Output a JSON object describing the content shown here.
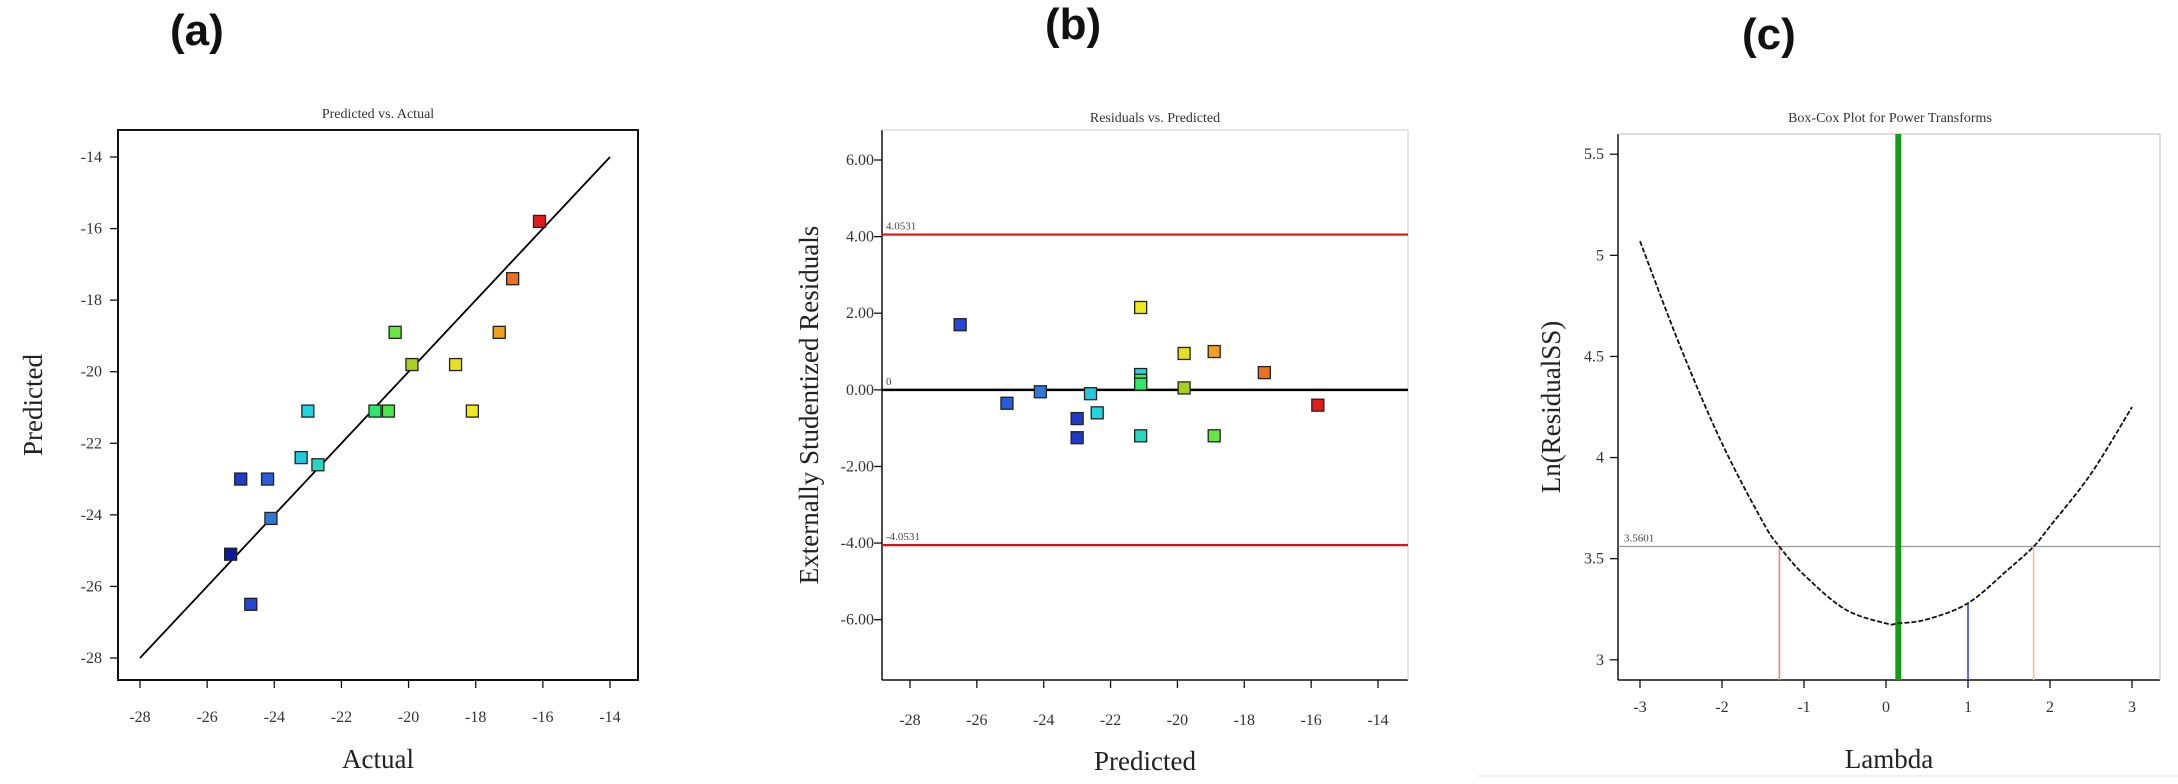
{
  "panels": {
    "a": {
      "letter": "(a)"
    },
    "b": {
      "letter": "(b)"
    },
    "c": {
      "letter": "(c)"
    }
  },
  "chart_data": [
    {
      "id": "a",
      "type": "scatter",
      "title": "Predicted vs. Actual",
      "xlabel": "Actual",
      "ylabel": "Predicted",
      "xlim": [
        -28,
        -14
      ],
      "ylim": [
        -28,
        -14
      ],
      "xticks": [
        -28,
        -26,
        -24,
        -22,
        -20,
        -18,
        -16,
        -14
      ],
      "yticks": [
        -28,
        -26,
        -24,
        -22,
        -20,
        -18,
        -16,
        -14
      ],
      "reference_line": {
        "from": [
          -28,
          -28
        ],
        "to": [
          -14,
          -14
        ],
        "color": "#000000"
      },
      "points": [
        {
          "x": -25.3,
          "y": -25.1,
          "color": "#0a1a9c"
        },
        {
          "x": -25.0,
          "y": -23.0,
          "color": "#1f3cc8"
        },
        {
          "x": -24.7,
          "y": -26.5,
          "color": "#2347d6"
        },
        {
          "x": -24.2,
          "y": -23.0,
          "color": "#2a5bd8"
        },
        {
          "x": -24.1,
          "y": -24.1,
          "color": "#2f78d8"
        },
        {
          "x": -23.2,
          "y": -22.4,
          "color": "#22c8dc"
        },
        {
          "x": -23.0,
          "y": -21.1,
          "color": "#22d4e0"
        },
        {
          "x": -22.7,
          "y": -22.6,
          "color": "#27d6c0"
        },
        {
          "x": -21.0,
          "y": -21.1,
          "color": "#2ee86a"
        },
        {
          "x": -20.6,
          "y": -21.1,
          "color": "#4ae84a"
        },
        {
          "x": -20.4,
          "y": -18.9,
          "color": "#66e840"
        },
        {
          "x": -19.9,
          "y": -19.8,
          "color": "#a8d020"
        },
        {
          "x": -18.6,
          "y": -19.8,
          "color": "#e6e020"
        },
        {
          "x": -18.1,
          "y": -21.1,
          "color": "#f2e81e"
        },
        {
          "x": -17.3,
          "y": -18.9,
          "color": "#f0a020"
        },
        {
          "x": -16.9,
          "y": -17.4,
          "color": "#f07020"
        },
        {
          "x": -16.1,
          "y": -15.8,
          "color": "#e21c1c"
        }
      ]
    },
    {
      "id": "b",
      "type": "scatter",
      "title": "Residuals vs. Predicted",
      "xlabel": "Predicted",
      "ylabel": "Externally Studentized Residuals",
      "xlim": [
        -28,
        -14
      ],
      "ylim": [
        -7,
        6
      ],
      "xticks": [
        -28,
        -26,
        -24,
        -22,
        -20,
        -18,
        -16,
        -14
      ],
      "yticks": [
        -6,
        -4,
        -2,
        0,
        2,
        4,
        6
      ],
      "ytick_labels": [
        "-6.00",
        "-4.00",
        "-2.00",
        "0.00",
        "2.00",
        "4.00",
        "6.00"
      ],
      "hlines": [
        {
          "y": 4.0531,
          "label": "4.0531",
          "color": "#e01010"
        },
        {
          "y": 0,
          "label": "0",
          "color": "#000000"
        },
        {
          "y": -4.0531,
          "label": "-4.0531",
          "color": "#e01010"
        }
      ],
      "points": [
        {
          "x": -26.5,
          "y": 1.7,
          "color": "#2347d6"
        },
        {
          "x": -25.1,
          "y": -0.35,
          "color": "#2a5bd8"
        },
        {
          "x": -24.1,
          "y": -0.05,
          "color": "#2f78d8"
        },
        {
          "x": -23.0,
          "y": -0.75,
          "color": "#1f3cc8"
        },
        {
          "x": -23.0,
          "y": -1.25,
          "color": "#1f3cc8"
        },
        {
          "x": -22.6,
          "y": -0.1,
          "color": "#22c8dc"
        },
        {
          "x": -22.4,
          "y": -0.6,
          "color": "#22d4e0"
        },
        {
          "x": -21.1,
          "y": 2.15,
          "color": "#f2e81e"
        },
        {
          "x": -21.1,
          "y": 0.4,
          "color": "#22d4e0"
        },
        {
          "x": -21.1,
          "y": 0.25,
          "color": "#4ae84a"
        },
        {
          "x": -21.1,
          "y": 0.15,
          "color": "#2ee86a"
        },
        {
          "x": -21.1,
          "y": -1.2,
          "color": "#27d6c0"
        },
        {
          "x": -19.8,
          "y": 0.95,
          "color": "#e6e020"
        },
        {
          "x": -19.8,
          "y": 0.05,
          "color": "#a8d020"
        },
        {
          "x": -18.9,
          "y": 1.0,
          "color": "#f0a020"
        },
        {
          "x": -18.9,
          "y": -1.2,
          "color": "#66e840"
        },
        {
          "x": -17.4,
          "y": 0.45,
          "color": "#f07020"
        },
        {
          "x": -15.8,
          "y": -0.4,
          "color": "#e21c1c"
        }
      ]
    },
    {
      "id": "c",
      "type": "line",
      "title": "Box-Cox Plot for Power Transforms",
      "xlabel": "Lambda",
      "ylabel": "Ln(ResidualSS)",
      "xlim": [
        -3,
        3
      ],
      "ylim": [
        2.9,
        5.6
      ],
      "xticks": [
        -3,
        -2,
        -1,
        0,
        1,
        2,
        3
      ],
      "yticks": [
        3,
        3.5,
        4,
        4.5,
        5,
        5.5
      ],
      "ytick_labels": [
        "3",
        "3.5",
        "4",
        "4.5",
        "5",
        "5.5"
      ],
      "curve": {
        "x": [
          -3,
          -2.5,
          -2,
          -1.5,
          -1.3,
          -1,
          -0.5,
          0,
          0.15,
          0.5,
          1,
          1.5,
          1.8,
          2,
          2.5,
          3
        ],
        "y": [
          5.07,
          4.54,
          4.07,
          3.68,
          3.56,
          3.42,
          3.25,
          3.18,
          3.18,
          3.2,
          3.28,
          3.45,
          3.56,
          3.66,
          3.92,
          4.25
        ]
      },
      "threshold": {
        "y": 3.56,
        "label": "3.5601",
        "color": "#999999"
      },
      "vlines": [
        {
          "x": 0.15,
          "color": "#1a9a1a",
          "from_y": 2.9,
          "to_y": 5.6
        },
        {
          "x": 1,
          "color": "#3a46e0",
          "from_y": 2.9,
          "to_y": 3.28
        },
        {
          "x": -1.3,
          "color": "#f08080",
          "from_y": 2.9,
          "to_y": 3.56
        },
        {
          "x": 1.8,
          "color": "#f5c09a",
          "from_y": 2.9,
          "to_y": 3.56
        }
      ]
    }
  ]
}
